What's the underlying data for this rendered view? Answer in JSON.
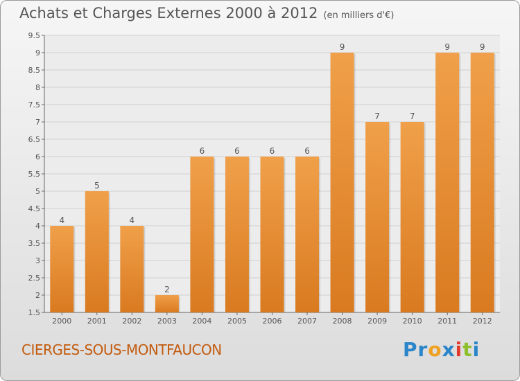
{
  "title": "Achats et Charges Externes 2000 à 2012",
  "subtitle": "(en milliers d'€)",
  "location": "CIERGES-SOUS-MONTFAUCON",
  "logo": {
    "letters": [
      "P",
      "r",
      "o",
      "x",
      "i",
      "t",
      "i"
    ],
    "colors": [
      "#2a86c9",
      "#2a86c9",
      "#f0a020",
      "#2a86c9",
      "#e23a2a",
      "#8cbf2a",
      "#2a86c9"
    ]
  },
  "colors": {
    "bar": "#f0a04a",
    "bar_dark": "#d97a20",
    "grid": "#d0d0d0",
    "title": "#555555"
  },
  "chart_data": {
    "type": "bar",
    "categories": [
      "2000",
      "2001",
      "2002",
      "2003",
      "2004",
      "2005",
      "2006",
      "2007",
      "2008",
      "2009",
      "2010",
      "2011",
      "2012"
    ],
    "values": [
      4,
      5,
      4,
      2,
      6,
      6,
      6,
      6,
      9,
      7,
      7,
      9,
      9
    ],
    "ylim": [
      1.5,
      9.5
    ],
    "yticks": [
      "1.5",
      "2",
      "2.5",
      "3",
      "3.5",
      "4",
      "4.5",
      "5",
      "5.5",
      "6",
      "6.5",
      "7",
      "7.5",
      "8",
      "8.5",
      "9",
      "9.5"
    ],
    "grid": true,
    "xlabel": "",
    "ylabel": ""
  }
}
